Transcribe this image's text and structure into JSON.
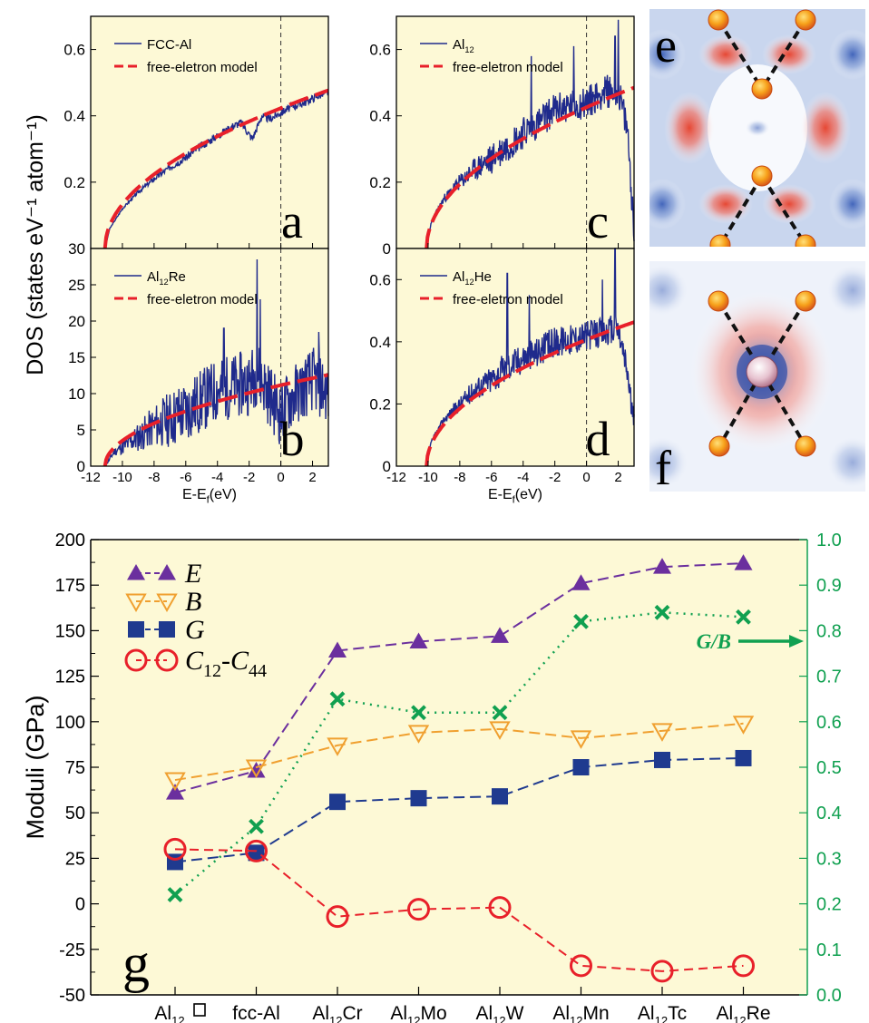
{
  "chart_data": [
    {
      "panel": "a",
      "type": "line",
      "ylabel": "DOS (states eV⁻¹ atom⁻¹)",
      "ylim": [
        0,
        0.7
      ],
      "xlim": [
        -12,
        3
      ],
      "yticks": [
        "0.2",
        "0.4",
        "0.6"
      ],
      "vline_x": 0,
      "series": [
        {
          "name": "FCC-Al",
          "seed": 3,
          "amp": 0.012,
          "points": [
            [
              -11.1,
              0.0
            ],
            [
              -10.8,
              0.06
            ],
            [
              -10,
              0.12
            ],
            [
              -9,
              0.17
            ],
            [
              -8,
              0.21
            ],
            [
              -7,
              0.245
            ],
            [
              -6,
              0.275
            ],
            [
              -5,
              0.31
            ],
            [
              -4,
              0.34
            ],
            [
              -3,
              0.37
            ],
            [
              -2.5,
              0.38
            ],
            [
              -1.8,
              0.33
            ],
            [
              -1.2,
              0.4
            ],
            [
              -0.7,
              0.39
            ],
            [
              0,
              0.41
            ],
            [
              0.8,
              0.43
            ],
            [
              1.5,
              0.44
            ],
            [
              2.3,
              0.46
            ],
            [
              3,
              0.47
            ]
          ]
        },
        {
          "name": "free-eletron model",
          "model": "sqrt",
          "k": 0.127
        }
      ]
    },
    {
      "panel": "b",
      "type": "line",
      "ylim": [
        0,
        30
      ],
      "xlim": [
        -12,
        3
      ],
      "yticks": [
        "0",
        "5",
        "10",
        "15",
        "20",
        "25",
        "30"
      ],
      "xticks": [
        "-12",
        "-10",
        "-8",
        "-6",
        "-4",
        "-2",
        "0",
        "2"
      ],
      "xlabel": "E-E_f(eV)",
      "vline_x": 0,
      "series": [
        {
          "name": "Al12Re",
          "seed": 11,
          "amp": 4.5,
          "points": [
            [
              -11.1,
              0
            ],
            [
              -10.5,
              2
            ],
            [
              -9,
              4
            ],
            [
              -8,
              5.5
            ],
            [
              -7,
              6.5
            ],
            [
              -6,
              7.5
            ],
            [
              -5,
              9
            ],
            [
              -4,
              10.5
            ],
            [
              -3,
              11
            ],
            [
              -2,
              11.5
            ],
            [
              -1.5,
              13
            ],
            [
              -1,
              11
            ],
            [
              -0.5,
              9
            ],
            [
              0,
              7
            ],
            [
              0.5,
              9
            ],
            [
              1,
              10
            ],
            [
              2,
              12
            ],
            [
              3,
              10
            ]
          ],
          "spikes": [
            [
              -1.5,
              28.5
            ],
            [
              -1.3,
              23
            ],
            [
              -3.6,
              19
            ],
            [
              2.4,
              18.5
            ]
          ]
        },
        {
          "name": "free-eletron model",
          "model": "sqrt",
          "k": 3.35
        }
      ]
    },
    {
      "panel": "c",
      "type": "line",
      "ylim": [
        0,
        0.7
      ],
      "xlim": [
        -12,
        3
      ],
      "yticks": [
        "0",
        "0.2",
        "0.4",
        "0.6"
      ],
      "vline_x": 0,
      "series": [
        {
          "name": "Al12",
          "seed": 23,
          "amp": 0.05,
          "points": [
            [
              -10.1,
              0
            ],
            [
              -9.8,
              0.08
            ],
            [
              -9,
              0.15
            ],
            [
              -8,
              0.2
            ],
            [
              -7,
              0.24
            ],
            [
              -6,
              0.27
            ],
            [
              -5,
              0.31
            ],
            [
              -4,
              0.35
            ],
            [
              -3,
              0.38
            ],
            [
              -2,
              0.42
            ],
            [
              -1,
              0.43
            ],
            [
              0,
              0.44
            ],
            [
              1,
              0.47
            ],
            [
              2,
              0.48
            ],
            [
              2.6,
              0.35
            ],
            [
              3,
              0.05
            ]
          ],
          "spikes": [
            [
              2.0,
              0.69
            ],
            [
              1.8,
              0.64
            ],
            [
              -0.8,
              0.61
            ],
            [
              -3.5,
              0.58
            ]
          ]
        },
        {
          "name": "free-eletron model",
          "model": "sqrt",
          "k": 0.134
        }
      ]
    },
    {
      "panel": "d",
      "type": "line",
      "ylim": [
        0,
        0.7
      ],
      "xlim": [
        -12,
        3
      ],
      "yticks": [
        "0",
        "0.2",
        "0.4",
        "0.6"
      ],
      "xticks": [
        "-12",
        "-10",
        "-8",
        "-6",
        "-4",
        "-2",
        "0",
        "2"
      ],
      "xlabel": "E-E_f(eV)",
      "vline_x": 0,
      "series": [
        {
          "name": "Al12He",
          "seed": 37,
          "amp": 0.05,
          "points": [
            [
              -10.1,
              0
            ],
            [
              -9.8,
              0.08
            ],
            [
              -9,
              0.15
            ],
            [
              -8,
              0.2
            ],
            [
              -7,
              0.25
            ],
            [
              -6,
              0.28
            ],
            [
              -5,
              0.32
            ],
            [
              -4,
              0.35
            ],
            [
              -3,
              0.37
            ],
            [
              -2,
              0.4
            ],
            [
              -1,
              0.41
            ],
            [
              0,
              0.42
            ],
            [
              1,
              0.43
            ],
            [
              2,
              0.44
            ],
            [
              2.6,
              0.3
            ],
            [
              3,
              0.12
            ]
          ],
          "spikes": [
            [
              1.8,
              0.7
            ],
            [
              -5.0,
              0.62
            ],
            [
              1.0,
              0.6
            ],
            [
              -3.6,
              0.55
            ]
          ]
        },
        {
          "name": "free-eletron model",
          "model": "sqrt",
          "k": 0.128
        }
      ]
    },
    {
      "panel": "g",
      "type": "line",
      "categories": [
        "Al12□",
        "fcc-Al",
        "Al12Cr",
        "Al12Mo",
        "Al12W",
        "Al12Mn",
        "Al12Tc",
        "Al12Re"
      ],
      "ylabel": "Moduli (GPa)",
      "y2label": "G/B",
      "ylim": [
        -50,
        200
      ],
      "y2lim": [
        0,
        1.0
      ],
      "yticks": [
        "-50",
        "-25",
        "0",
        "25",
        "50",
        "75",
        "100",
        "125",
        "150",
        "175",
        "200"
      ],
      "y2ticks": [
        "0.0",
        "0.1",
        "0.2",
        "0.3",
        "0.4",
        "0.5",
        "0.6",
        "0.7",
        "0.8",
        "0.9",
        "1.0"
      ],
      "annotation": "G/B",
      "series": [
        {
          "name": "E",
          "axis": "left",
          "values": [
            61,
            73,
            139,
            144,
            147,
            176,
            185,
            187
          ]
        },
        {
          "name": "B",
          "axis": "left",
          "values": [
            68,
            75,
            87,
            94,
            96,
            91,
            95,
            99
          ]
        },
        {
          "name": "G",
          "axis": "left",
          "values": [
            23,
            28,
            56,
            58,
            59,
            75,
            79,
            80
          ]
        },
        {
          "name": "C12-C44",
          "axis": "left",
          "values": [
            30,
            29,
            -7,
            -3,
            -2,
            -34,
            -37,
            -34
          ]
        },
        {
          "axis": "right",
          "values": [
            0.22,
            0.37,
            0.65,
            0.62,
            0.62,
            0.82,
            0.84,
            0.83
          ]
        }
      ]
    }
  ],
  "images": {
    "e": {
      "label": "e",
      "description_icon": "charge-density-map-icon"
    },
    "f": {
      "label": "f",
      "description_icon": "charge-density-map-with-center-atom-icon"
    }
  },
  "colors": {
    "panel_bg": "#fdf9d6",
    "dos": "#1f2a8c",
    "model": "#e8202a",
    "E": "#6b2f9e",
    "B": "#f0a030",
    "G": "#1f3a8f",
    "C": "#e8202a",
    "GB": "#10a050",
    "right_axis": "#10a050"
  }
}
